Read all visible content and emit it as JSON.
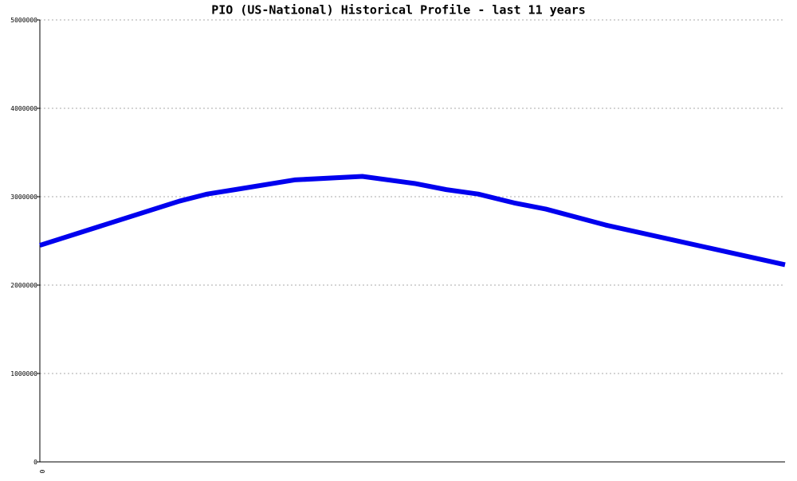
{
  "chart_data": {
    "type": "line",
    "title": "PIO (US-National) Historical Profile - last 11 years",
    "x": [
      0,
      2.06,
      2.47,
      2.88,
      3.76,
      4.76,
      5.53,
      6.0,
      6.47,
      7.0,
      7.47,
      8.35,
      11
    ],
    "series": [
      {
        "name": "PIO",
        "color": "#0000ee",
        "values": [
          2450000,
          2950000,
          3030000,
          3080000,
          3190000,
          3230000,
          3150000,
          3080000,
          3030000,
          2930000,
          2860000,
          2680000,
          2230000
        ]
      }
    ],
    "xlim": [
      0,
      11
    ],
    "xticks": [
      0
    ],
    "ylim": [
      0,
      5000000
    ],
    "yticks": [
      0,
      1000000,
      2000000,
      3000000,
      4000000,
      5000000
    ],
    "grid": true
  }
}
